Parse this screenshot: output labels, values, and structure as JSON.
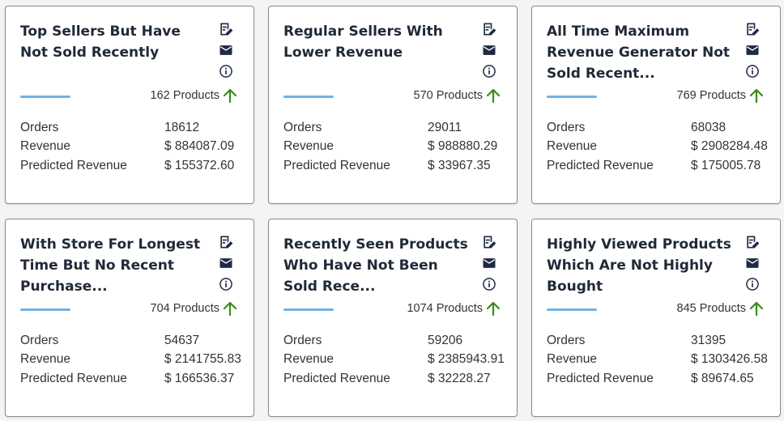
{
  "cards": [
    {
      "title": "Top Sellers But Have Not Sold Recently",
      "products": "162 Products",
      "stats": [
        {
          "label": "Orders",
          "value": "18612"
        },
        {
          "label": "Revenue",
          "value": "$ 884087.09"
        },
        {
          "label": "Predicted Revenue",
          "value": "$ 155372.60"
        }
      ]
    },
    {
      "title": "Regular Sellers With Lower Revenue",
      "products": "570 Products",
      "stats": [
        {
          "label": "Orders",
          "value": "29011"
        },
        {
          "label": "Revenue",
          "value": "$ 988880.29"
        },
        {
          "label": "Predicted Revenue",
          "value": "$ 33967.35"
        }
      ]
    },
    {
      "title": "All Time Maximum Revenue Generator Not Sold Recent...",
      "products": "769 Products",
      "stats": [
        {
          "label": "Orders",
          "value": "68038"
        },
        {
          "label": "Revenue",
          "value": "$ 2908284.48"
        },
        {
          "label": "Predicted Revenue",
          "value": "$ 175005.78"
        }
      ]
    },
    {
      "title": "With Store For Longest Time But No Recent Purchase...",
      "products": "704 Products",
      "stats": [
        {
          "label": "Orders",
          "value": "54637"
        },
        {
          "label": "Revenue",
          "value": "$ 2141755.83"
        },
        {
          "label": "Predicted Revenue",
          "value": "$ 166536.37"
        }
      ]
    },
    {
      "title": "Recently Seen Products Who Have Not Been Sold Rece...",
      "products": "1074 Products",
      "stats": [
        {
          "label": "Orders",
          "value": "59206"
        },
        {
          "label": "Revenue",
          "value": "$ 2385943.91"
        },
        {
          "label": "Predicted Revenue",
          "value": "$ 32228.27"
        }
      ]
    },
    {
      "title": "Highly Viewed Products Which Are Not Highly Bought",
      "products": "845 Products",
      "stats": [
        {
          "label": "Orders",
          "value": "31395"
        },
        {
          "label": "Revenue",
          "value": "$ 1303426.58"
        },
        {
          "label": "Predicted Revenue",
          "value": "$ 89674.65"
        }
      ]
    }
  ],
  "icons": {
    "edit": "edit-note-icon",
    "mail": "mail-icon",
    "info": "info-icon",
    "trend": "arrow-up-icon"
  },
  "colors": {
    "icon": "#1e2a44",
    "accent_bar": "#6fb3e8",
    "arrow": "#3a8a1f"
  }
}
